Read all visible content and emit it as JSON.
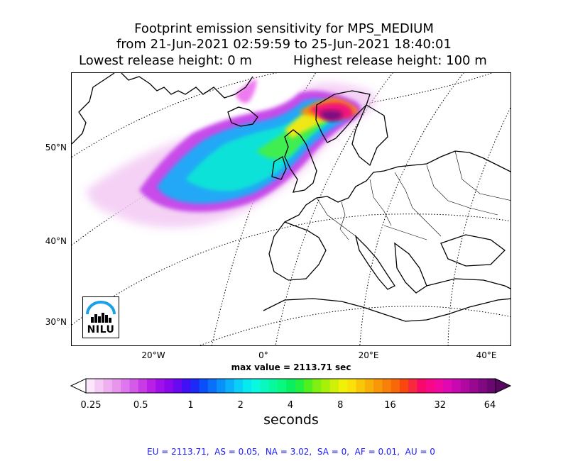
{
  "title": {
    "line1": "Footprint emission sensitivity for MPS_MEDIUM",
    "line2": "from 21-Jun-2021 02:59:59 to 25-Jun-2021 18:40:01",
    "lowest": "Lowest release height: 0 m",
    "highest": "Highest release height: 100 m"
  },
  "map": {
    "lat_labels": [
      "50°N",
      "40°N",
      "30°N"
    ],
    "lon_labels": [
      "20°W",
      "0°",
      "20°E",
      "40°E"
    ],
    "logo_text": "NILU",
    "logo_color": "#1aa0e6"
  },
  "max_value": "max value = 2113.71 sec",
  "colorbar": {
    "ticks": [
      "0.25",
      "0.5",
      "1",
      "2",
      "4",
      "8",
      "16",
      "32",
      "64"
    ],
    "label": "seconds",
    "colors": [
      "#fbe6fb",
      "#f5cbf5",
      "#eeb0f0",
      "#e796ee",
      "#de78ec",
      "#d45ae8",
      "#c83ce6",
      "#b820e6",
      "#a010ea",
      "#8a08ee",
      "#6a08f2",
      "#4010f6",
      "#1e28f8",
      "#0a50fa",
      "#0a70fa",
      "#0a90fa",
      "#0ab0fa",
      "#0ad0f8",
      "#08e8f0",
      "#08f8e0",
      "#08f8c0",
      "#08f8a0",
      "#08f880",
      "#08f060",
      "#20f040",
      "#50f020",
      "#80f010",
      "#a8f008",
      "#d0f008",
      "#f0f008",
      "#f8e008",
      "#f8c808",
      "#f8b008",
      "#f89808",
      "#f88008",
      "#f86808",
      "#f84810",
      "#f82840",
      "#f80868",
      "#f80888",
      "#f008a0",
      "#e008b0",
      "#c808b0",
      "#b008a0",
      "#980890",
      "#800880",
      "#6a0870"
    ]
  },
  "regions": "EU = 2113.71,  AS = 0.05,  NA = 3.02,  SA = 0,  AF = 0.01,  AU = 0"
}
